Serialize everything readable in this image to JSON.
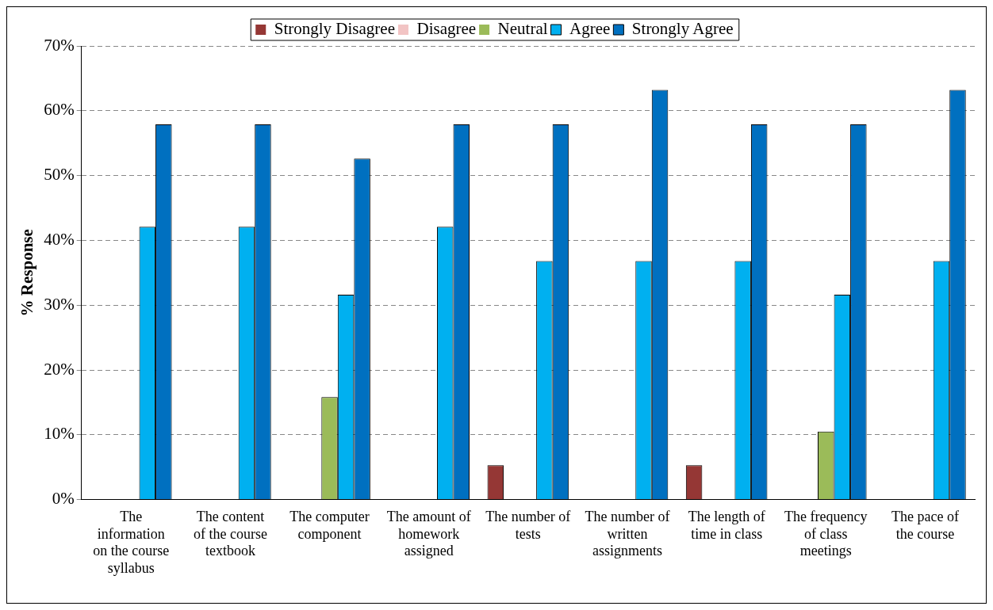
{
  "chart_data": {
    "type": "bar",
    "ylabel": "% Response",
    "categories": [
      "The information on the course syllabus",
      "The content of the course textbook",
      "The computer component",
      "The amount of homework assigned",
      "The number of tests",
      "The number of written assignments",
      "The length of time in class",
      "The frequency of class meetings",
      "The pace of the course"
    ],
    "series": [
      {
        "name": "Strongly Disagree",
        "color": "#953735",
        "values": [
          0,
          0,
          0,
          0,
          5.3,
          0,
          5.3,
          0,
          0
        ]
      },
      {
        "name": "Disagree",
        "color": "#f2c4c4",
        "values": [
          0,
          0,
          0,
          0,
          0,
          0,
          0,
          0,
          0
        ]
      },
      {
        "name": "Neutral",
        "color": "#9bbb59",
        "values": [
          0,
          0,
          15.8,
          0,
          0,
          0,
          0,
          10.5,
          0
        ]
      },
      {
        "name": "Agree",
        "color": "#00b0f0",
        "values": [
          42.1,
          42.1,
          31.6,
          42.1,
          36.8,
          36.8,
          36.8,
          31.6,
          36.8
        ]
      },
      {
        "name": "Strongly Agree",
        "color": "#0070c0",
        "values": [
          57.9,
          57.9,
          52.6,
          57.9,
          57.9,
          63.2,
          57.9,
          57.9,
          63.2
        ]
      }
    ],
    "ylim": [
      0,
      70
    ],
    "yticks": [
      {
        "value": 0,
        "label": "0%"
      },
      {
        "value": 10,
        "label": "10%"
      },
      {
        "value": 20,
        "label": "20%"
      },
      {
        "value": 30,
        "label": "30%"
      },
      {
        "value": 40,
        "label": "40%"
      },
      {
        "value": 50,
        "label": "50%"
      },
      {
        "value": 60,
        "label": "60%"
      },
      {
        "value": 70,
        "label": "70%"
      }
    ],
    "grid": "y",
    "legend": "top"
  }
}
